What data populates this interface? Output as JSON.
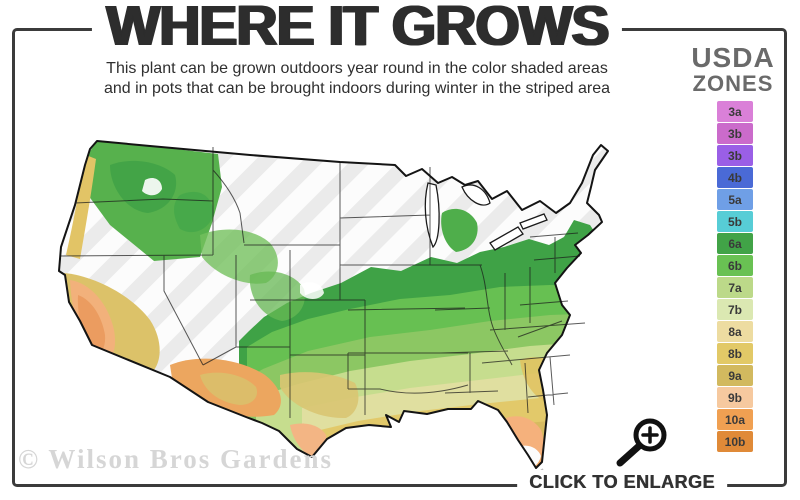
{
  "page": {
    "background_color": "#ffffff",
    "frame_border_color": "#3b3b3b"
  },
  "header": {
    "title": "WHERE IT GROWS",
    "subtitle_line1": "This plant can be grown outdoors year round in the color shaded areas",
    "subtitle_line2": "and in pots that can be brought indoors during winter in the striped area"
  },
  "legend": {
    "title_line1": "USDA",
    "title_line2": "ZONES",
    "title_color": "#6a6a6a",
    "label_color": "#3a3a3a",
    "zones": [
      {
        "label": "3a",
        "color": "#da80d8"
      },
      {
        "label": "3b",
        "color": "#cb6bcb"
      },
      {
        "label": "3b",
        "color": "#9a5fe6"
      },
      {
        "label": "4b",
        "color": "#4a6ad6"
      },
      {
        "label": "5a",
        "color": "#6f9fe6"
      },
      {
        "label": "5b",
        "color": "#57cdd6"
      },
      {
        "label": "6a",
        "color": "#41a347"
      },
      {
        "label": "6b",
        "color": "#69c153"
      },
      {
        "label": "7a",
        "color": "#bcd989"
      },
      {
        "label": "7b",
        "color": "#dbe8b2"
      },
      {
        "label": "8a",
        "color": "#eddca1"
      },
      {
        "label": "8b",
        "color": "#e2c967"
      },
      {
        "label": "9a",
        "color": "#d2b95f"
      },
      {
        "label": "9b",
        "color": "#f6c99f"
      },
      {
        "label": "10a",
        "color": "#f0a052"
      },
      {
        "label": "10b",
        "color": "#e08a38"
      }
    ]
  },
  "map": {
    "name": "Continental United States USDA hardiness zone shading",
    "no_color_area": "#fcfcfc",
    "stripe_color": "#ebebeb",
    "state_border_color": "#1b1b1b",
    "palette": {
      "dark_green_band": "#3fa246",
      "green_band": "#69c153",
      "yellow_green_band": "#c6dd8e",
      "tan_band": "#e2c96a",
      "gulf_orange_band": "#efa45f",
      "california_valley": "#f2b17b",
      "florida_peach": "#f5b17c"
    }
  },
  "watermark": {
    "text": "© Wilson Bros Gardens"
  },
  "enlarge": {
    "label": "CLICK TO ENLARGE",
    "icon": "magnifier-plus-icon"
  }
}
